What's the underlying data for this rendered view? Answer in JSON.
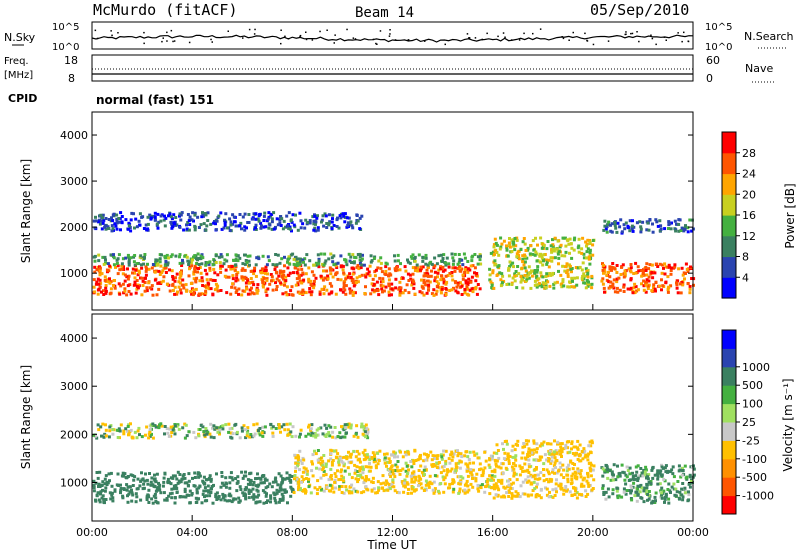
{
  "header": {
    "station": "McMurdo (fitACF)",
    "beam": "Beam 14",
    "date": "05/Sep/2010"
  },
  "noise_panel": {
    "left_label": "N.Sky",
    "right_label": "N.Search",
    "left_ticks": [
      "10^5",
      "10^0"
    ],
    "right_ticks": [
      "10^5",
      "10^0"
    ]
  },
  "freq_panel": {
    "left_label_1": "Freq.",
    "left_label_2": "[MHz]",
    "left_ticks": [
      "18",
      "8"
    ],
    "right_label": "Nave",
    "right_ticks": [
      "60",
      "0"
    ]
  },
  "cpid_panel": {
    "label": "CPID",
    "mode": "normal (fast) 151"
  },
  "colors": {
    "power_scale": [
      "#0000ff",
      "#2a44b0",
      "#3a8060",
      "#44b040",
      "#c8d020",
      "#ffa500",
      "#ff5500",
      "#ff0000"
    ],
    "velocity_scale": [
      "#ff0000",
      "#ff5500",
      "#ff9000",
      "#ffc000",
      "#c8c8c8",
      "#a0e060",
      "#44b040",
      "#3a8060",
      "#2a44b0",
      "#0000ff"
    ]
  },
  "chart_data": [
    {
      "type": "heatmap",
      "panel": "power",
      "ylabel": "Slant Range [km]",
      "yticks": [
        "1000",
        "2000",
        "3000",
        "4000"
      ],
      "ylim": [
        200,
        4500
      ],
      "xlim": [
        0,
        24
      ],
      "colorbar_label": "Power [dB]",
      "colorbar_ticks": [
        "4",
        "8",
        "12",
        "16",
        "20",
        "24",
        "28"
      ],
      "colorbar_range": [
        0,
        32
      ],
      "bands": [
        {
          "start": 0.0,
          "end": 15.5,
          "lower": 550,
          "upper": 1200,
          "power": 26
        },
        {
          "start": 0.0,
          "end": 15.5,
          "lower": 1200,
          "upper": 1450,
          "power": 12
        },
        {
          "start": 0.0,
          "end": 10.8,
          "lower": 1950,
          "upper": 2350,
          "power": 6
        },
        {
          "start": 15.8,
          "end": 20.0,
          "lower": 700,
          "upper": 1800,
          "power": 18
        },
        {
          "start": 20.3,
          "end": 24.0,
          "lower": 600,
          "upper": 1250,
          "power": 26
        },
        {
          "start": 20.3,
          "end": 24.0,
          "lower": 1900,
          "upper": 2200,
          "power": 8
        }
      ]
    },
    {
      "type": "heatmap",
      "panel": "velocity",
      "ylabel": "Slant Range [km]",
      "yticks": [
        "1000",
        "2000",
        "3000",
        "4000"
      ],
      "ylim": [
        200,
        4500
      ],
      "xlim": [
        0,
        24
      ],
      "xticks": [
        "00:00",
        "04:00",
        "08:00",
        "12:00",
        "16:00",
        "20:00",
        "00:00"
      ],
      "xlabel": "Time UT",
      "colorbar_label": "Velocity [m s⁻¹]",
      "colorbar_ticks": [
        "-1000",
        "-500",
        "-100",
        "-25",
        "25",
        "100",
        "500",
        "1000"
      ],
      "bands": [
        {
          "start": 0.0,
          "end": 8.0,
          "lower": 600,
          "upper": 1250,
          "velocity": 300
        },
        {
          "start": 8.0,
          "end": 16.0,
          "lower": 800,
          "upper": 1700,
          "velocity": -150
        },
        {
          "start": 16.0,
          "end": 20.0,
          "lower": 700,
          "upper": 1900,
          "velocity": -200
        },
        {
          "start": 20.3,
          "end": 24.0,
          "lower": 600,
          "upper": 1400,
          "velocity": 150
        },
        {
          "start": 0.0,
          "end": 11.0,
          "lower": 1950,
          "upper": 2250,
          "velocity": 0
        }
      ]
    }
  ]
}
